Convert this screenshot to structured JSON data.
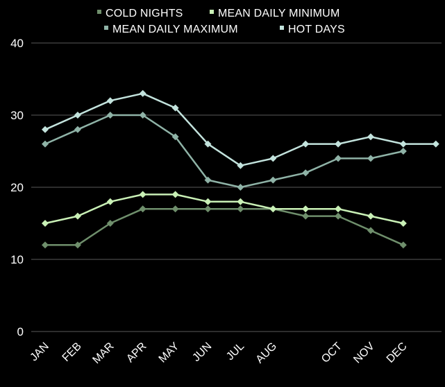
{
  "chart_data": {
    "type": "line",
    "categories": [
      "JAN",
      "FEB",
      "MAR",
      "APR",
      "MAY",
      "JUN",
      "JUL",
      "AUG",
      "",
      "OCT",
      "NOV",
      "DEC",
      ""
    ],
    "ylim": [
      0,
      40
    ],
    "yticks": [
      0,
      10,
      20,
      30,
      40
    ],
    "grid": true,
    "legend_position": "top",
    "marker": "diamond",
    "series": [
      {
        "name": "COLD NIGHTS",
        "color": "#6f8f6c",
        "values": [
          12,
          12,
          15,
          17,
          17,
          17,
          17,
          17,
          16,
          16,
          14,
          12,
          null
        ]
      },
      {
        "name": "MEAN DAILY MINIMUM",
        "color": "#c9f0b6",
        "values": [
          15,
          16,
          18,
          19,
          19,
          18,
          18,
          17,
          17,
          17,
          16,
          15,
          null
        ]
      },
      {
        "name": "MEAN DAILY MAXIMUM",
        "color": "#8fb3a7",
        "values": [
          26,
          28,
          30,
          30,
          27,
          21,
          20,
          21,
          22,
          24,
          24,
          25,
          null
        ]
      },
      {
        "name": "HOT DAYS",
        "color": "#c3e3dd",
        "values": [
          28,
          30,
          32,
          33,
          31,
          26,
          23,
          24,
          26,
          26,
          27,
          26,
          26
        ]
      }
    ]
  }
}
